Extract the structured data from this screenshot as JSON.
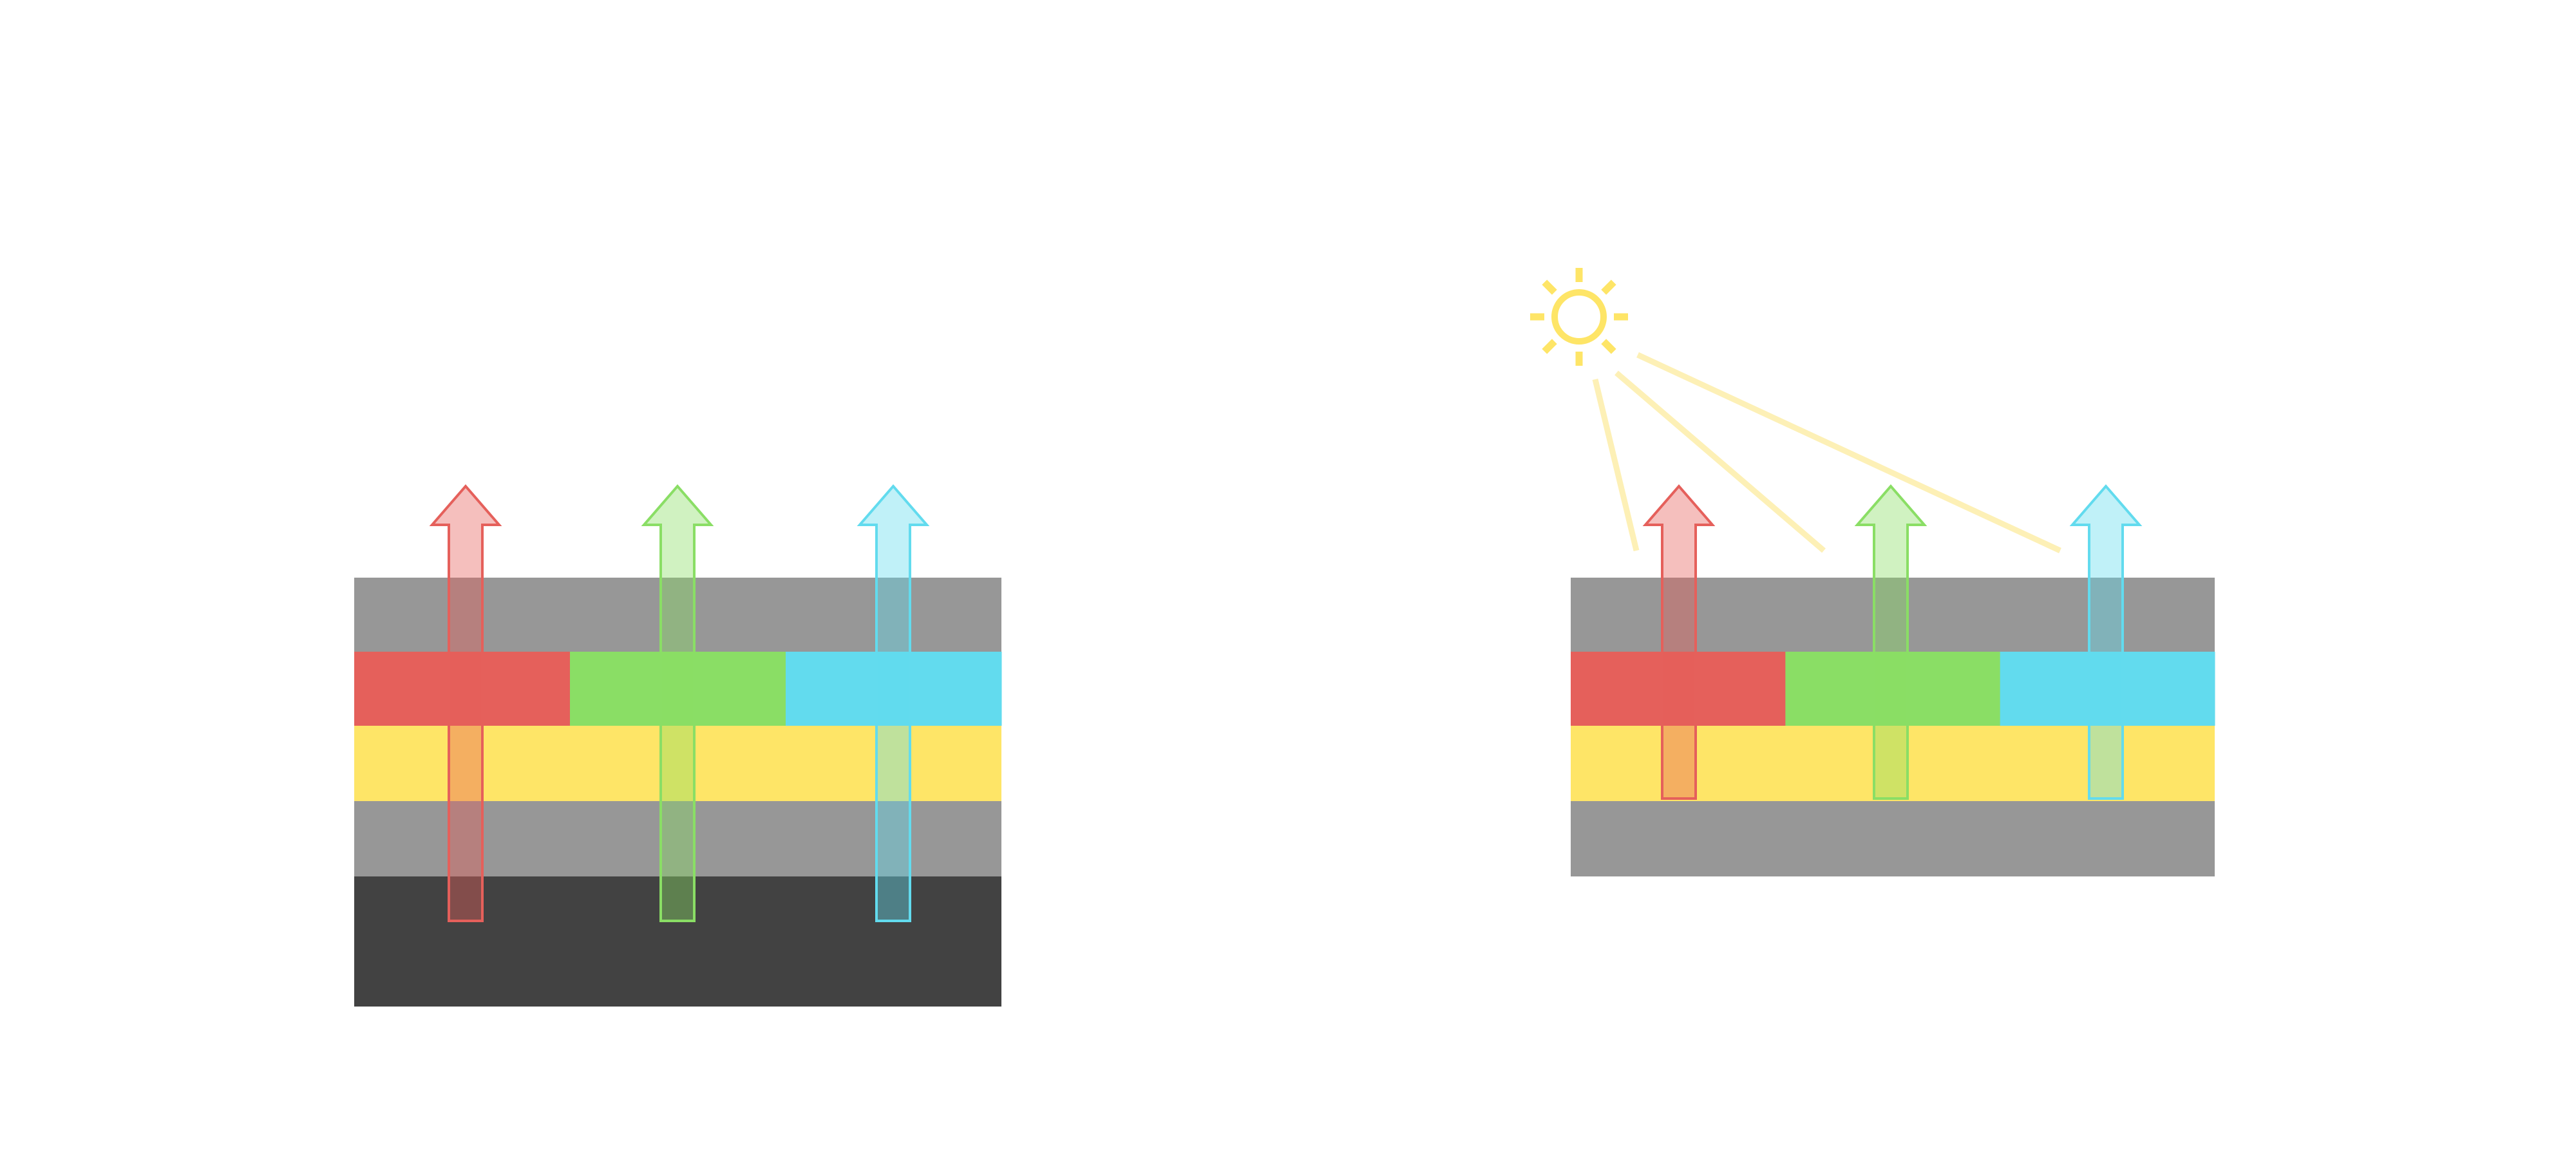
{
  "colors": {
    "background": "#ffffff",
    "gray_layer": "#979797",
    "dark_layer": "#424242",
    "red": "#e5605b",
    "green": "#8ade65",
    "cyan": "#62dbee",
    "yellow": "#fee567",
    "sun": "#fee567",
    "light_beam": "#fdf0b6"
  },
  "diagrams": [
    {
      "name": "left-stack",
      "layers": [
        "gray",
        "red-green-cyan",
        "yellow",
        "gray",
        "dark"
      ],
      "arrows": [
        "red",
        "green",
        "cyan"
      ]
    },
    {
      "name": "right-stack",
      "layers": [
        "gray",
        "red-green-cyan",
        "yellow",
        "gray"
      ],
      "arrows": [
        "red",
        "green",
        "cyan"
      ],
      "icons": [
        "sun-icon"
      ],
      "light_beams": 3
    }
  ]
}
